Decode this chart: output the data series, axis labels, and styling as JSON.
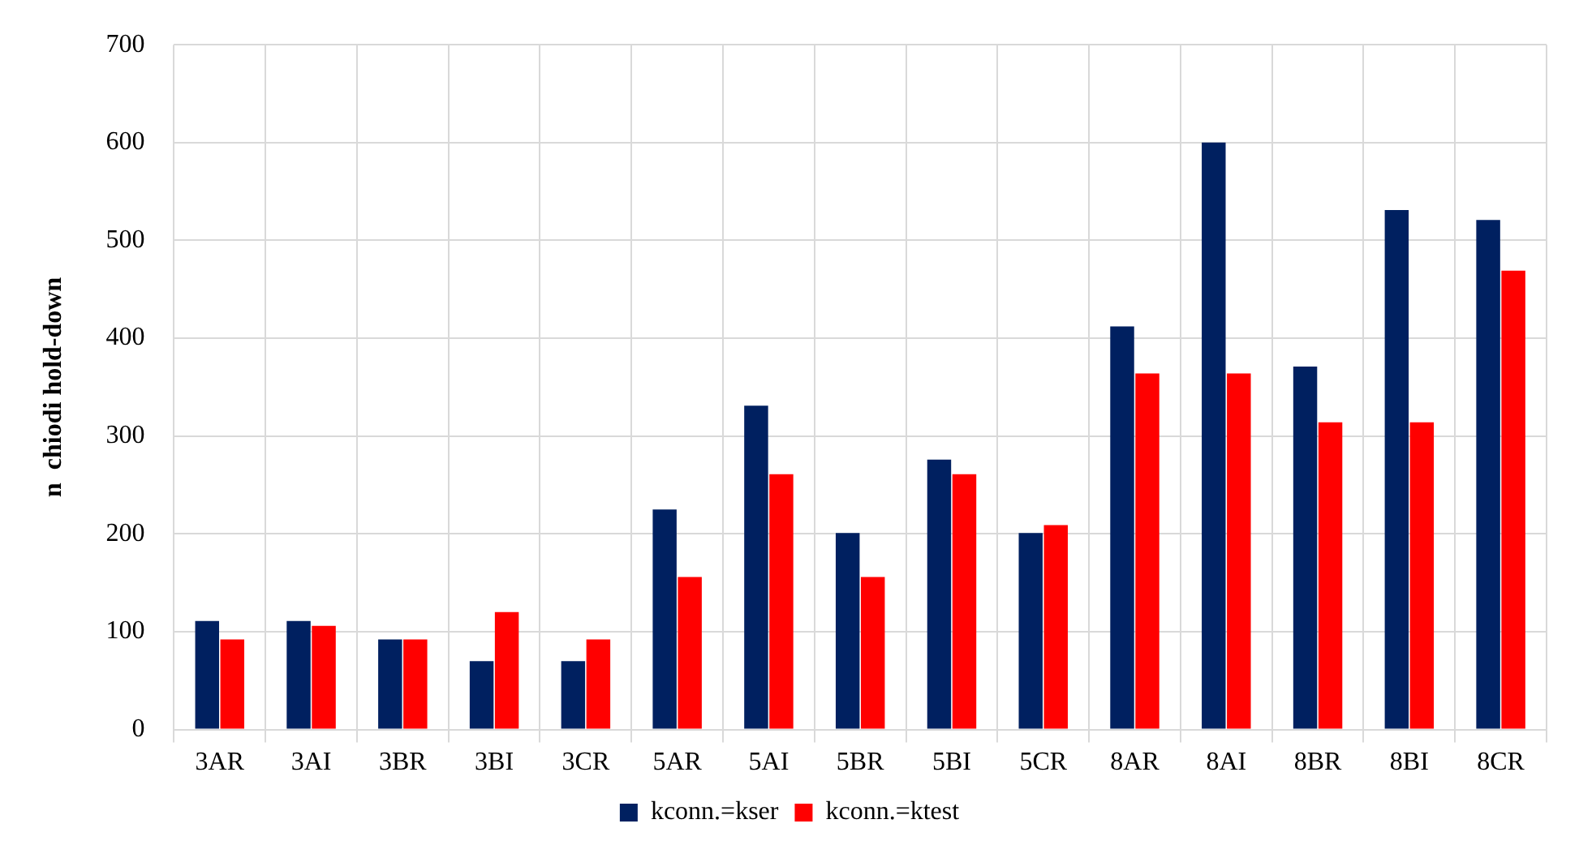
{
  "chart_data": {
    "type": "bar",
    "ylabel": "n  chiodi hold-down",
    "categories": [
      "3AR",
      "3AI",
      "3BR",
      "3BI",
      "3CR",
      "5AR",
      "5AI",
      "5BR",
      "5BI",
      "5CR",
      "8AR",
      "8AI",
      "8BR",
      "8BI",
      "8CR"
    ],
    "series": [
      {
        "name": "kconn.=kser",
        "color": "#002060",
        "values": [
          111,
          111,
          92,
          70,
          70,
          225,
          331,
          201,
          276,
          201,
          412,
          600,
          371,
          531,
          521
        ]
      },
      {
        "name": "kconn.=ktest",
        "color": "#ff0000",
        "values": [
          92,
          106,
          92,
          120,
          92,
          156,
          261,
          156,
          261,
          209,
          364,
          364,
          314,
          314,
          469
        ]
      }
    ],
    "ylim": [
      0,
      700
    ],
    "yticks": [
      0,
      100,
      200,
      300,
      400,
      500,
      600,
      700
    ],
    "grid": true,
    "legend": "bottom"
  }
}
